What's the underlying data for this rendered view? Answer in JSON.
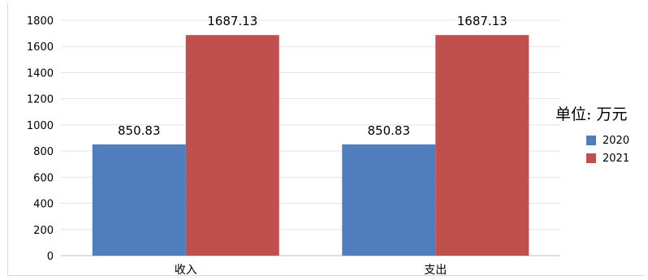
{
  "chart_data": {
    "type": "bar",
    "categories": [
      "收入",
      "支出"
    ],
    "series": [
      {
        "name": "2020",
        "values": [
          850.83,
          850.83
        ],
        "color": "#4f7dbd"
      },
      {
        "name": "2021",
        "values": [
          1687.13,
          1687.13
        ],
        "color": "#c0504d"
      }
    ],
    "data_labels": [
      [
        "850.83",
        "850.83"
      ],
      [
        "1687.13",
        "1687.13"
      ]
    ],
    "yticks": [
      0,
      200,
      400,
      600,
      800,
      1000,
      1200,
      1400,
      1600,
      1800
    ],
    "ylim": [
      0,
      1800
    ],
    "grid": true,
    "legend_position": "right"
  },
  "unit_text": "单位: 万元"
}
